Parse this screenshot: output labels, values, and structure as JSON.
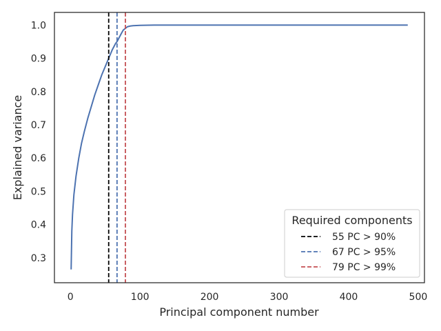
{
  "chart_data": {
    "type": "line",
    "title": "",
    "xlabel": "Principal component number",
    "ylabel": "Explained variance",
    "xlim": [
      -23,
      509
    ],
    "ylim": [
      0.225,
      1.038
    ],
    "xticks": [
      0,
      100,
      200,
      300,
      400,
      500
    ],
    "yticks": [
      0.3,
      0.4,
      0.5,
      0.6,
      0.7,
      0.8,
      0.9,
      1.0
    ],
    "ytick_labels": [
      "0.3",
      "0.4",
      "0.5",
      "0.6",
      "0.7",
      "0.8",
      "0.9",
      "1.0"
    ],
    "grid": false,
    "series": [
      {
        "name": "",
        "color": "#4c72b0",
        "x": [
          1,
          2,
          3,
          5,
          8,
          12,
          16,
          20,
          25,
          30,
          35,
          40,
          45,
          50,
          55,
          60,
          65,
          67,
          70,
          73,
          76,
          79,
          82,
          86,
          90,
          100,
          120,
          150,
          200,
          300,
          400,
          485
        ],
        "y": [
          0.265,
          0.38,
          0.43,
          0.49,
          0.545,
          0.6,
          0.645,
          0.68,
          0.72,
          0.755,
          0.79,
          0.82,
          0.85,
          0.875,
          0.9,
          0.925,
          0.945,
          0.95,
          0.962,
          0.974,
          0.985,
          0.99,
          0.995,
          0.997,
          0.998,
          0.999,
          1.0,
          1.0,
          1.0,
          1.0,
          1.0,
          1.0
        ]
      }
    ],
    "vlines": [
      {
        "x": 55,
        "color": "#000000",
        "label": "55 PC > 90%"
      },
      {
        "x": 67,
        "color": "#4c72b0",
        "label": "67 PC > 95%"
      },
      {
        "x": 79,
        "color": "#c44e52",
        "label": "79 PC > 99%"
      }
    ],
    "legend": {
      "title": "Required components",
      "placement": "lower-right"
    }
  }
}
